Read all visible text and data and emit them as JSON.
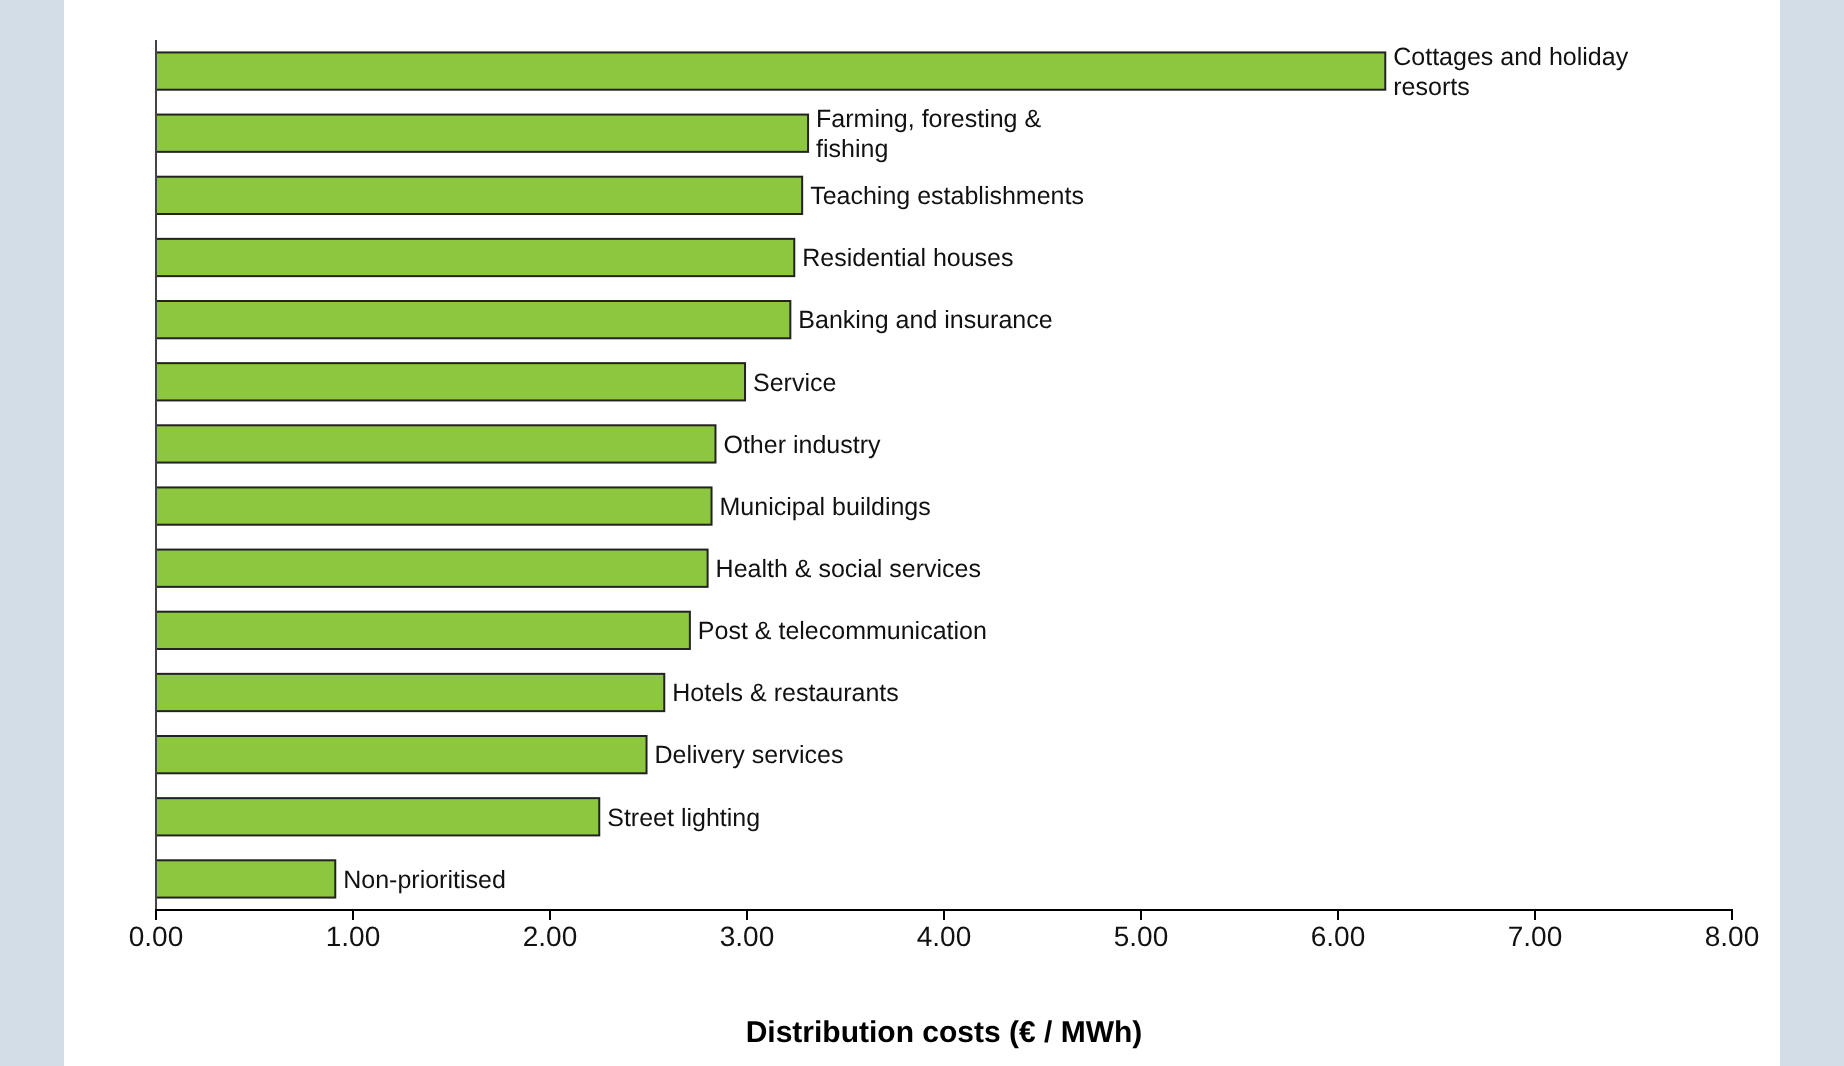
{
  "chart_data": {
    "type": "bar",
    "orientation": "horizontal",
    "xlabel": "Distribution costs (€ / MWh)",
    "categories": [
      "Cottages and holiday resorts",
      "Farming, foresting & fishing",
      "Teaching establishments",
      "Residential houses",
      "Banking and insurance",
      "Service",
      "Other industry",
      "Municipal buildings",
      "Health & social services",
      "Post & telecommunication",
      "Hotels & restaurants",
      "Delivery services",
      "Street lighting",
      "Non-prioritised"
    ],
    "values": [
      6.24,
      3.31,
      3.28,
      3.24,
      3.22,
      2.99,
      2.84,
      2.82,
      2.8,
      2.71,
      2.58,
      2.49,
      2.25,
      0.91
    ],
    "color": "#8dc63f",
    "xlim": [
      0,
      8
    ],
    "xticks": [
      {
        "value": 0,
        "label": "0.00"
      },
      {
        "value": 1,
        "label": "1.00"
      },
      {
        "value": 2,
        "label": "2.00"
      },
      {
        "value": 3,
        "label": "3.00"
      },
      {
        "value": 4,
        "label": "4.00"
      },
      {
        "value": 5,
        "label": "5.00"
      },
      {
        "value": 6,
        "label": "6.00"
      },
      {
        "value": 7,
        "label": "7.00"
      },
      {
        "value": 8,
        "label": "8.00"
      }
    ],
    "grid": false
  }
}
